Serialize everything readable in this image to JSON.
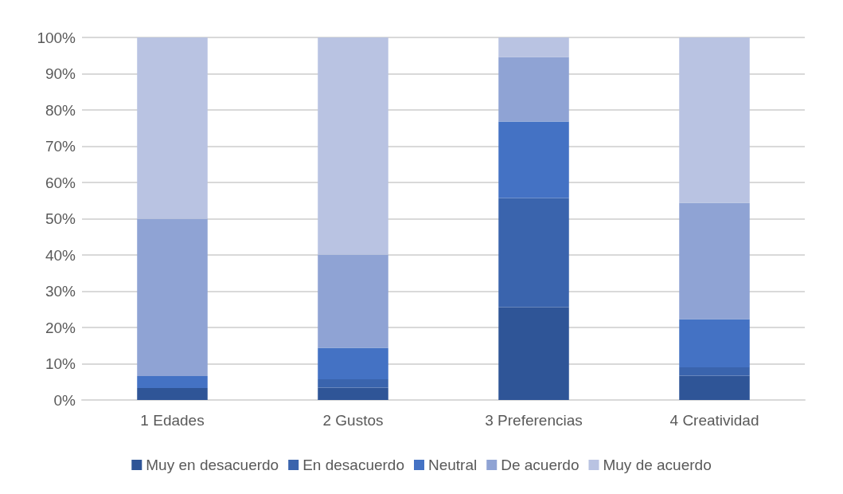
{
  "chart_data": {
    "type": "bar",
    "stacked": true,
    "categories": [
      "1 Edades",
      "2 Gustos",
      "3 Preferencias",
      "4 Creatividad"
    ],
    "series": [
      {
        "name": "Muy en desacuerdo",
        "color": "#2f5597",
        "values": [
          3.3,
          3.4,
          25.6,
          6.7
        ]
      },
      {
        "name": "En desacuerdo",
        "color": "#3a64ad",
        "values": [
          0,
          2.3,
          30.1,
          2.3
        ]
      },
      {
        "name": "Neutral",
        "color": "#4472c4",
        "values": [
          3.3,
          8.7,
          21.1,
          13.3
        ]
      },
      {
        "name": "De acuerdo",
        "color": "#8fa3d4",
        "values": [
          43.4,
          25.7,
          17.8,
          32.1
        ]
      },
      {
        "name": "Muy de acuerdo",
        "color": "#b9c3e2",
        "values": [
          50,
          59.9,
          5.4,
          45.6
        ]
      }
    ],
    "ylim": [
      0,
      100
    ],
    "yticks": [
      {
        "value": 0,
        "label": "0%"
      },
      {
        "value": 10,
        "label": "10%"
      },
      {
        "value": 20,
        "label": "20%"
      },
      {
        "value": 30,
        "label": "30%"
      },
      {
        "value": 40,
        "label": "40%"
      },
      {
        "value": 50,
        "label": "50%"
      },
      {
        "value": 60,
        "label": "60%"
      },
      {
        "value": 70,
        "label": "70%"
      },
      {
        "value": 80,
        "label": "80%"
      },
      {
        "value": 90,
        "label": "90%"
      },
      {
        "value": 100,
        "label": "100%"
      }
    ],
    "grid": "y",
    "legend": "bottom"
  }
}
